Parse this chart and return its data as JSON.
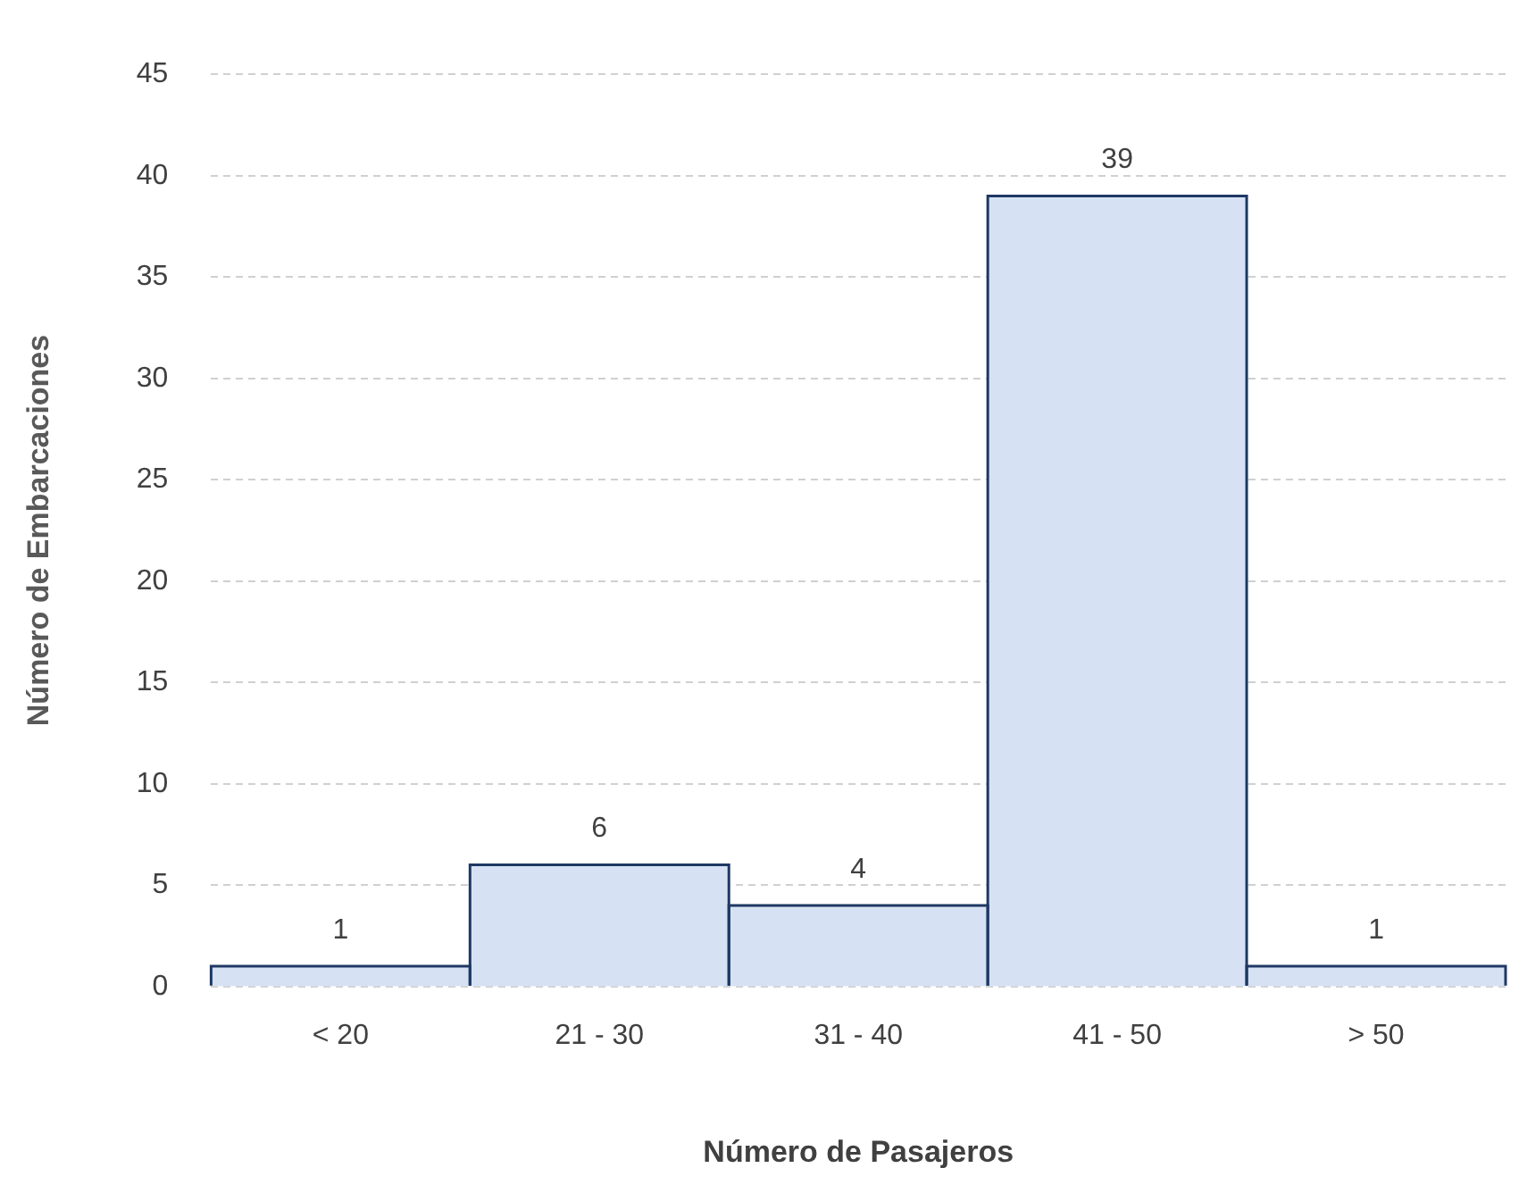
{
  "chart_data": {
    "type": "bar",
    "xlabel": "Número de Pasajeros",
    "ylabel": "Número de Embarcaciones",
    "categories": [
      "< 20",
      "21 - 30",
      "31 - 40",
      "41 - 50",
      "> 50"
    ],
    "values": [
      1,
      6,
      4,
      39,
      1
    ],
    "color": "#d6e2f3",
    "ylim": [
      0,
      45
    ],
    "yticks": [
      0,
      5,
      10,
      15,
      20,
      25,
      30,
      35,
      40,
      45
    ],
    "grid": "y",
    "legend": false,
    "data_labels": true
  }
}
